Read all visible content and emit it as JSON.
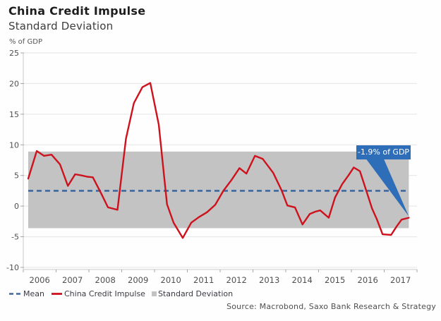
{
  "header": {
    "title": "China Credit Impulse",
    "subtitle": "Standard Deviation",
    "unit_label": "% of GDP"
  },
  "chart_data": {
    "type": "line",
    "title": "China Credit Impulse",
    "subtitle": "Standard Deviation",
    "ylabel": "% of GDP",
    "xlabel": "",
    "ylim": [
      -10,
      25
    ],
    "xlim": [
      2006,
      2018
    ],
    "yticks": [
      25,
      20,
      15,
      10,
      5,
      0,
      -5,
      -10
    ],
    "xticks": [
      2006,
      2007,
      2008,
      2009,
      2010,
      2011,
      2012,
      2013,
      2014,
      2015,
      2016,
      2017
    ],
    "grid": "horizontal",
    "legend_position": "bottom-left",
    "mean": 2.5,
    "std_band": {
      "low": -3.6,
      "high": 8.9,
      "x_start": 2006.15,
      "x_end": 2017.75
    },
    "series": [
      {
        "name": "China Credit Impulse",
        "color": "#ce121d",
        "points": [
          [
            2006.15,
            4.5
          ],
          [
            2006.41,
            9.0
          ],
          [
            2006.63,
            8.2
          ],
          [
            2006.86,
            8.4
          ],
          [
            2007.12,
            6.8
          ],
          [
            2007.36,
            3.3
          ],
          [
            2007.58,
            5.2
          ],
          [
            2007.78,
            5.0
          ],
          [
            2007.95,
            4.8
          ],
          [
            2008.12,
            4.7
          ],
          [
            2008.38,
            2.0
          ],
          [
            2008.58,
            -0.2
          ],
          [
            2008.87,
            -0.6
          ],
          [
            2009.13,
            11.0
          ],
          [
            2009.37,
            16.8
          ],
          [
            2009.63,
            19.4
          ],
          [
            2009.87,
            20.1
          ],
          [
            2010.13,
            13.3
          ],
          [
            2010.38,
            0.3
          ],
          [
            2010.58,
            -2.7
          ],
          [
            2010.86,
            -5.2
          ],
          [
            2011.12,
            -2.7
          ],
          [
            2011.35,
            -1.8
          ],
          [
            2011.6,
            -1.0
          ],
          [
            2011.85,
            0.2
          ],
          [
            2012.1,
            2.5
          ],
          [
            2012.35,
            4.3
          ],
          [
            2012.59,
            6.2
          ],
          [
            2012.8,
            5.3
          ],
          [
            2013.06,
            8.2
          ],
          [
            2013.3,
            7.7
          ],
          [
            2013.62,
            5.4
          ],
          [
            2013.87,
            2.6
          ],
          [
            2014.05,
            0.1
          ],
          [
            2014.28,
            -0.2
          ],
          [
            2014.51,
            -3.0
          ],
          [
            2014.73,
            -1.3
          ],
          [
            2014.9,
            -0.9
          ],
          [
            2015.05,
            -0.7
          ],
          [
            2015.31,
            -1.9
          ],
          [
            2015.5,
            1.4
          ],
          [
            2015.72,
            3.6
          ],
          [
            2015.91,
            5.0
          ],
          [
            2016.07,
            6.3
          ],
          [
            2016.26,
            5.7
          ],
          [
            2016.45,
            2.6
          ],
          [
            2016.63,
            -0.4
          ],
          [
            2016.78,
            -2.2
          ],
          [
            2016.95,
            -4.6
          ],
          [
            2017.21,
            -4.7
          ],
          [
            2017.38,
            -3.3
          ],
          [
            2017.53,
            -2.2
          ],
          [
            2017.75,
            -1.9
          ]
        ]
      }
    ],
    "annotation": {
      "label": "-1.9% of GDP",
      "x": 2017.75,
      "y": -1.9,
      "box_color": "#2e6db8",
      "text_color": "#ffffff"
    },
    "legend": [
      {
        "label": "Mean",
        "style": "dashed-line",
        "color": "#41689c"
      },
      {
        "label": "China Credit Impulse",
        "style": "solid-line",
        "color": "#ce121d"
      },
      {
        "label": "Standard Deviation",
        "style": "band-square",
        "color": "#c3c3c3"
      }
    ],
    "colors": {
      "grid": "#e4e4e4",
      "axis_line": "#c9c9c9",
      "tick": "#a6a6a6",
      "axis_text": "#4f4f4f",
      "band": "#c3c3c3",
      "mean_line": "#41689c",
      "line": "#ce121d"
    },
    "source": "Source: Macrobond, Saxo Bank Research & Strategy"
  }
}
